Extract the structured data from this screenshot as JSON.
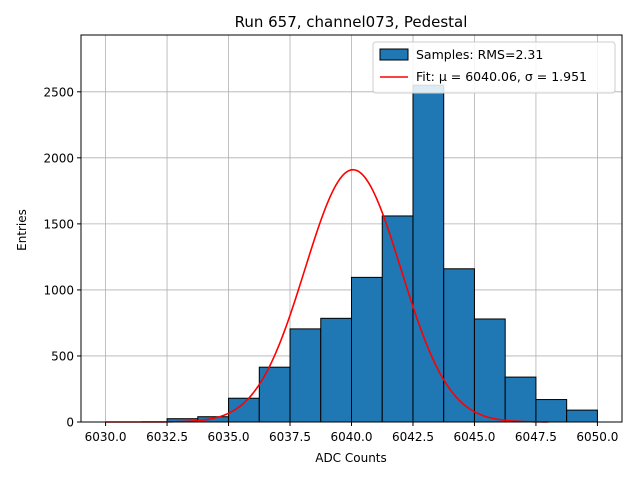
{
  "chart_data": {
    "type": "bar",
    "title": "Run 657, channel073, Pedestal",
    "xlabel": "ADC Counts",
    "ylabel": "Entries",
    "xlim": [
      6029.0,
      6051.0
    ],
    "ylim": [
      0,
      2930
    ],
    "xticks": [
      6030.0,
      6032.5,
      6035.0,
      6037.5,
      6040.0,
      6042.5,
      6045.0,
      6047.5,
      6050.0
    ],
    "xtick_labels": [
      "6030.0",
      "6032.5",
      "6035.0",
      "6037.5",
      "6040.0",
      "6042.5",
      "6045.0",
      "6047.5",
      "6050.0"
    ],
    "yticks": [
      0,
      500,
      1000,
      1500,
      2000,
      2500
    ],
    "ytick_labels": [
      "0",
      "500",
      "1000",
      "1500",
      "2000",
      "2500"
    ],
    "grid": true,
    "legend_position": "top-right",
    "bins": [
      {
        "x0": 6030.0,
        "x1": 6031.25,
        "value": 0
      },
      {
        "x0": 6031.25,
        "x1": 6032.5,
        "value": 0
      },
      {
        "x0": 6032.5,
        "x1": 6033.75,
        "value": 25
      },
      {
        "x0": 6033.75,
        "x1": 6035.0,
        "value": 40
      },
      {
        "x0": 6035.0,
        "x1": 6036.25,
        "value": 180
      },
      {
        "x0": 6036.25,
        "x1": 6037.5,
        "value": 415
      },
      {
        "x0": 6037.5,
        "x1": 6038.75,
        "value": 705
      },
      {
        "x0": 6038.75,
        "x1": 6040.0,
        "value": 785
      },
      {
        "x0": 6040.0,
        "x1": 6041.25,
        "value": 1095
      },
      {
        "x0": 6041.25,
        "x1": 6042.5,
        "value": 1560
      },
      {
        "x0": 6042.5,
        "x1": 6043.75,
        "value": 2550
      },
      {
        "x0": 6043.75,
        "x1": 6045.0,
        "value": 1160
      },
      {
        "x0": 6045.0,
        "x1": 6046.25,
        "value": 780
      },
      {
        "x0": 6046.25,
        "x1": 6047.5,
        "value": 340
      },
      {
        "x0": 6047.5,
        "x1": 6048.75,
        "value": 170
      },
      {
        "x0": 6048.75,
        "x1": 6050.0,
        "value": 90
      }
    ],
    "series": [
      {
        "name": "Samples: RMS=2.31",
        "kind": "histogram",
        "color": "#1f77b4",
        "edgecolor": "#000000"
      },
      {
        "name": "Fit: μ = 6040.06, σ = 1.951",
        "kind": "gaussian-fit",
        "color": "#ff0000",
        "mu": 6040.06,
        "sigma": 1.951,
        "amplitude": 1910,
        "x_range": [
          6030.0,
          6048.0
        ]
      }
    ]
  }
}
